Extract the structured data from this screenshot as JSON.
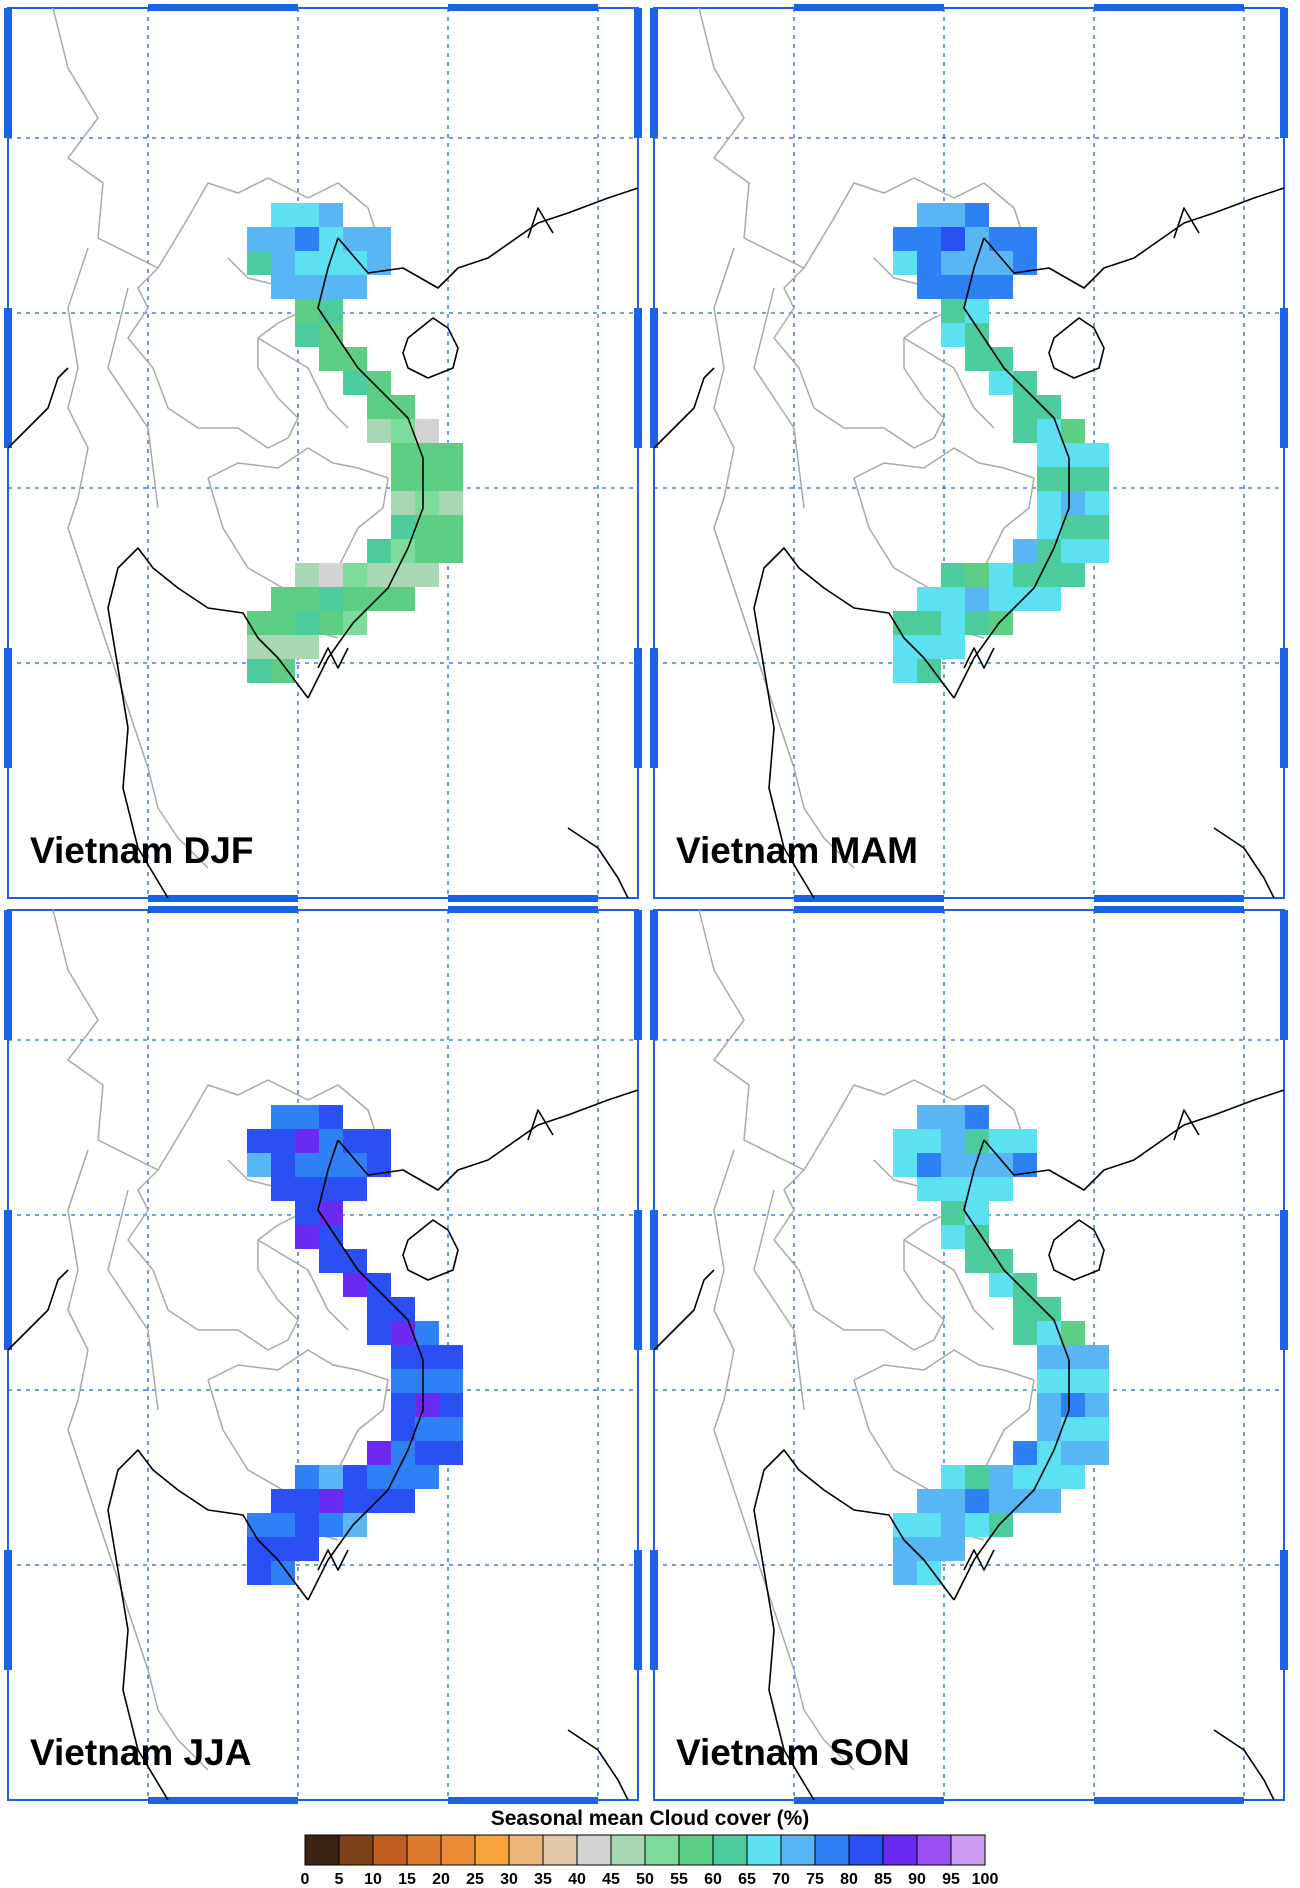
{
  "figure": {
    "panels": [
      {
        "id": "djf",
        "title": "Vietnam DJF"
      },
      {
        "id": "mam",
        "title": "Vietnam MAM"
      },
      {
        "id": "jja",
        "title": "Vietnam JJA"
      },
      {
        "id": "son",
        "title": "Vietnam SON"
      }
    ],
    "colorbar": {
      "title": "Seasonal mean Cloud cover (%)",
      "labels": [
        "0",
        "5",
        "10",
        "15",
        "20",
        "25",
        "30",
        "35",
        "40",
        "45",
        "50",
        "55",
        "60",
        "65",
        "70",
        "75",
        "80",
        "85",
        "90",
        "95",
        "100"
      ],
      "colors": [
        "#3b2413",
        "#7c4118",
        "#c15f22",
        "#de7a2c",
        "#ec8c37",
        "#f9a33f",
        "#edb679",
        "#e1c7a7",
        "#d3d3d3",
        "#a8d8b3",
        "#7ddc9c",
        "#5ccf85",
        "#4ccb9c",
        "#5ce1f2",
        "#58b6f5",
        "#2e80f5",
        "#2a4ff2",
        "#6a2af2",
        "#9a4ff2",
        "#cc9df2"
      ]
    }
  },
  "map_features": {
    "coastline_color": "#000000",
    "border_color": "#a9a9a9",
    "gridline_color": "#1a63e6",
    "frame_color": "#1a63e6"
  }
}
